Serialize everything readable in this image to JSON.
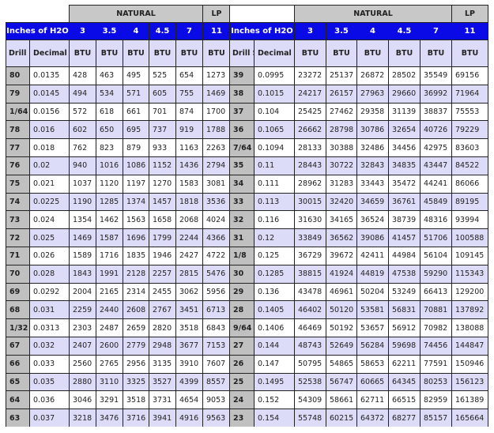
{
  "headers": {
    "natural": "NATURAL",
    "lp": "LP",
    "inches_label": "Inches of H2O",
    "pressures": [
      "3",
      "3.5",
      "4",
      "4.5",
      "7",
      "11"
    ],
    "drill_size": "Drill Size",
    "decimal_inches": "Decimal Inches",
    "btu": "BTU"
  },
  "colors": {
    "header_blue": "#0a0ae6",
    "row_lavender": "#dcdcf8",
    "drill_gray": "#c0c0c0",
    "group_gray": "#c8c8c8"
  },
  "left_rows": [
    [
      "80",
      "0.0135",
      "428",
      "463",
      "495",
      "525",
      "654",
      "1273"
    ],
    [
      "79",
      "0.0145",
      "494",
      "534",
      "571",
      "605",
      "755",
      "1469"
    ],
    [
      "1/64",
      "0.0156",
      "572",
      "618",
      "661",
      "701",
      "874",
      "1700"
    ],
    [
      "78",
      "0.016",
      "602",
      "650",
      "695",
      "737",
      "919",
      "1788"
    ],
    [
      "77",
      "0.018",
      "762",
      "823",
      "879",
      "933",
      "1163",
      "2263"
    ],
    [
      "76",
      "0.02",
      "940",
      "1016",
      "1086",
      "1152",
      "1436",
      "2794"
    ],
    [
      "75",
      "0.021",
      "1037",
      "1120",
      "1197",
      "1270",
      "1583",
      "3081"
    ],
    [
      "74",
      "0.0225",
      "1190",
      "1285",
      "1374",
      "1457",
      "1818",
      "3536"
    ],
    [
      "73",
      "0.024",
      "1354",
      "1462",
      "1563",
      "1658",
      "2068",
      "4024"
    ],
    [
      "72",
      "0.025",
      "1469",
      "1587",
      "1696",
      "1799",
      "2244",
      "4366"
    ],
    [
      "71",
      "0.026",
      "1589",
      "1716",
      "1835",
      "1946",
      "2427",
      "4722"
    ],
    [
      "70",
      "0.028",
      "1843",
      "1991",
      "2128",
      "2257",
      "2815",
      "5476"
    ],
    [
      "69",
      "0.0292",
      "2004",
      "2165",
      "2314",
      "2455",
      "3062",
      "5956"
    ],
    [
      "68",
      "0.031",
      "2259",
      "2440",
      "2608",
      "2767",
      "3451",
      "6713"
    ],
    [
      "1/32",
      "0.0313",
      "2303",
      "2487",
      "2659",
      "2820",
      "3518",
      "6843"
    ],
    [
      "67",
      "0.032",
      "2407",
      "2600",
      "2779",
      "2948",
      "3677",
      "7153"
    ],
    [
      "66",
      "0.033",
      "2560",
      "2765",
      "2956",
      "3135",
      "3910",
      "7607"
    ],
    [
      "65",
      "0.035",
      "2880",
      "3110",
      "3325",
      "3527",
      "4399",
      "8557"
    ],
    [
      "64",
      "0.036",
      "3046",
      "3291",
      "3518",
      "3731",
      "4654",
      "9053"
    ],
    [
      "63",
      "0.037",
      "3218",
      "3476",
      "3716",
      "3941",
      "4916",
      "9563"
    ]
  ],
  "right_rows": [
    [
      "39",
      "0.0995",
      "23272",
      "25137",
      "26872",
      "28502",
      "35549",
      "69156"
    ],
    [
      "38",
      "0.1015",
      "24217",
      "26157",
      "27963",
      "29660",
      "36992",
      "71964"
    ],
    [
      "37",
      "0.104",
      "25425",
      "27462",
      "29358",
      "31139",
      "38837",
      "75553"
    ],
    [
      "36",
      "0.1065",
      "26662",
      "28798",
      "30786",
      "32654",
      "40726",
      "79229"
    ],
    [
      "7/64",
      "0.1094",
      "28133",
      "30388",
      "32486",
      "34456",
      "42975",
      "83603"
    ],
    [
      "35",
      "0.11",
      "28443",
      "30722",
      "32843",
      "34835",
      "43447",
      "84522"
    ],
    [
      "34",
      "0.111",
      "28962",
      "31283",
      "33443",
      "35472",
      "44241",
      "86066"
    ],
    [
      "33",
      "0.113",
      "30015",
      "32420",
      "34659",
      "36761",
      "45849",
      "89195"
    ],
    [
      "32",
      "0.116",
      "31630",
      "34165",
      "36524",
      "38739",
      "48316",
      "93994"
    ],
    [
      "31",
      "0.12",
      "33849",
      "36562",
      "39086",
      "41457",
      "51706",
      "100588"
    ],
    [
      "1/8",
      "0.125",
      "36729",
      "39672",
      "42411",
      "44984",
      "56104",
      "109145"
    ],
    [
      "30",
      "0.1285",
      "38815",
      "41924",
      "44819",
      "47538",
      "59290",
      "115343"
    ],
    [
      "29",
      "0.136",
      "43478",
      "46961",
      "50204",
      "53249",
      "66413",
      "129200"
    ],
    [
      "28",
      "0.1405",
      "46402",
      "50120",
      "53581",
      "56831",
      "70881",
      "137892"
    ],
    [
      "9/64",
      "0.1406",
      "46469",
      "50192",
      "53657",
      "56912",
      "70982",
      "138088"
    ],
    [
      "27",
      "0.144",
      "48743",
      "52649",
      "56284",
      "59698",
      "74456",
      "144847"
    ],
    [
      "26",
      "0.147",
      "50795",
      "54865",
      "58653",
      "62211",
      "77591",
      "150946"
    ],
    [
      "25",
      "0.1495",
      "52538",
      "56747",
      "60665",
      "64345",
      "80253",
      "156123"
    ],
    [
      "24",
      "0.152",
      "54309",
      "58661",
      "62711",
      "66515",
      "82959",
      "161389"
    ],
    [
      "23",
      "0.154",
      "55748",
      "60215",
      "64372",
      "68277",
      "85157",
      "165664"
    ]
  ]
}
